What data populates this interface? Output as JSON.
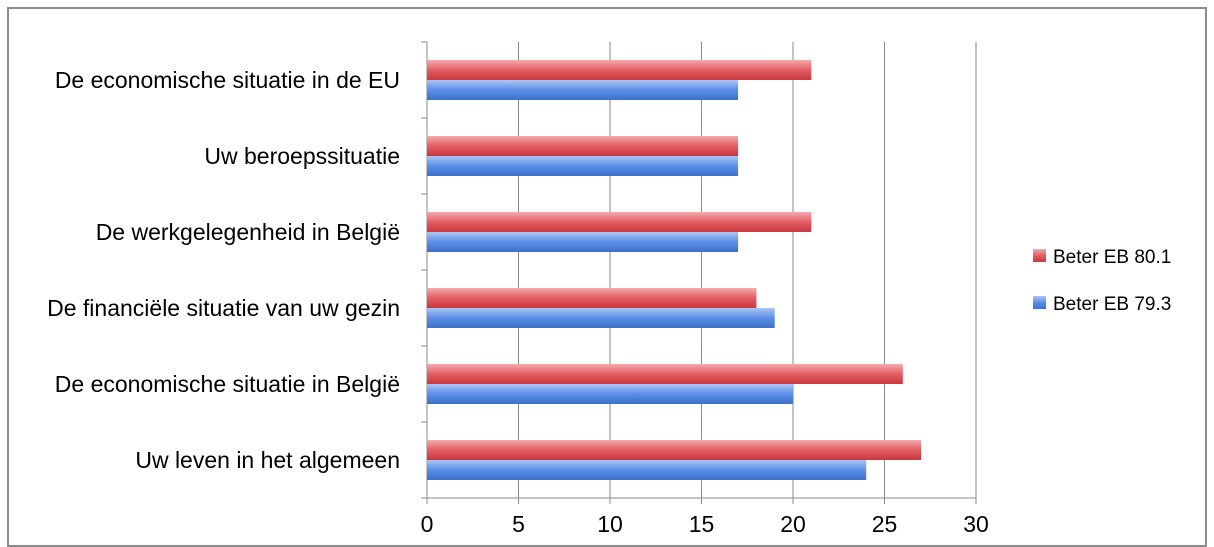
{
  "chart_data": {
    "type": "bar",
    "orientation": "horizontal",
    "categories": [
      "De economische situatie in de EU",
      "Uw beroepssituatie",
      "De werkgelegenheid in België",
      "De financiële situatie van uw gezin",
      "De economische situatie in België",
      "Uw leven in het algemeen"
    ],
    "series": [
      {
        "name": "Beter EB 80.1",
        "color": "#e05a5e",
        "values": [
          21,
          17,
          21,
          18,
          26,
          27
        ]
      },
      {
        "name": "Beter EB 79.3",
        "color": "#5b8fe6",
        "values": [
          17,
          17,
          17,
          19,
          20,
          24
        ]
      }
    ],
    "xlim": [
      0,
      30
    ],
    "xticks": [
      "0",
      "5",
      "10",
      "15",
      "20",
      "25",
      "30"
    ],
    "grid": "vertical",
    "legend_position": "right",
    "title": "",
    "xlabel": "",
    "ylabel": ""
  }
}
